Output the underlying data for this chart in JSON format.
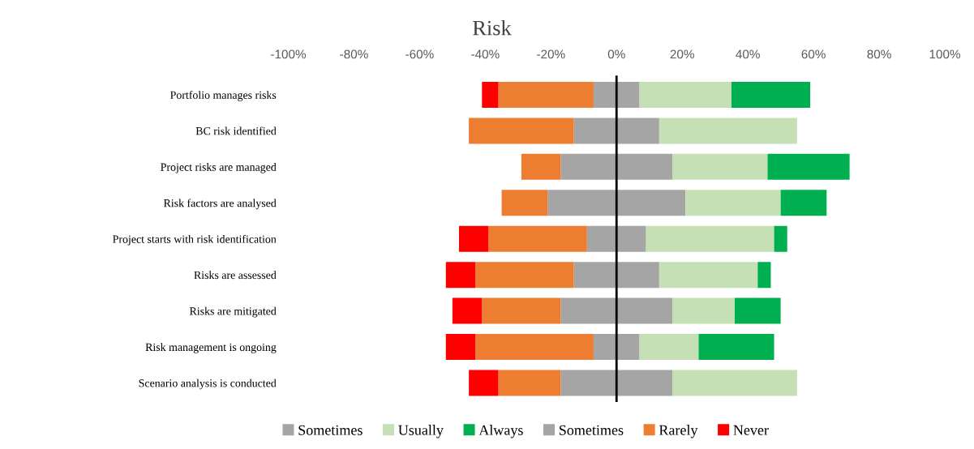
{
  "chart_data": {
    "type": "bar",
    "orientation": "horizontal",
    "stacked": true,
    "title": "Risk",
    "categories": [
      "Portfolio manages risks",
      "BC risk identified",
      "Project risks are managed",
      "Risk factors are analysed",
      "Project starts with risk identification",
      "Risks are assessed",
      "Risks are mitigated",
      "Risk management is ongoing",
      "Scenario analysis is conducted"
    ],
    "series": [
      {
        "name": "Sometimes",
        "color": "#a5a5a5",
        "values": [
          7,
          13,
          17,
          21,
          9,
          13,
          17,
          7,
          17
        ]
      },
      {
        "name": "Usually",
        "color": "#c5e0b4",
        "values": [
          28,
          42,
          29,
          29,
          39,
          30,
          19,
          18,
          38
        ]
      },
      {
        "name": "Always",
        "color": "#00b050",
        "values": [
          24,
          0,
          25,
          14,
          4,
          4,
          14,
          23,
          0
        ]
      },
      {
        "name": "Sometimes",
        "color": "#a5a5a5",
        "values": [
          -7,
          -13,
          -17,
          -21,
          -9,
          -13,
          -17,
          -7,
          -17
        ]
      },
      {
        "name": "Rarely",
        "color": "#ed7d31",
        "values": [
          -29,
          -32,
          -12,
          -14,
          -30,
          -30,
          -24,
          -36,
          -19
        ]
      },
      {
        "name": "Never",
        "color": "#ff0000",
        "values": [
          -5,
          0,
          0,
          0,
          -9,
          -9,
          -9,
          -9,
          -9
        ]
      }
    ],
    "xlim": [
      -100,
      100
    ],
    "xticks": [
      {
        "value": -100,
        "label": "-100%"
      },
      {
        "value": -80,
        "label": "-80%"
      },
      {
        "value": -60,
        "label": "-60%"
      },
      {
        "value": -40,
        "label": "-40%"
      },
      {
        "value": -20,
        "label": "-20%"
      },
      {
        "value": 0,
        "label": "0%"
      },
      {
        "value": 20,
        "label": "20%"
      },
      {
        "value": 40,
        "label": "40%"
      },
      {
        "value": 60,
        "label": "60%"
      },
      {
        "value": 80,
        "label": "80%"
      },
      {
        "value": 100,
        "label": "100%"
      }
    ],
    "legend": "bottom"
  }
}
